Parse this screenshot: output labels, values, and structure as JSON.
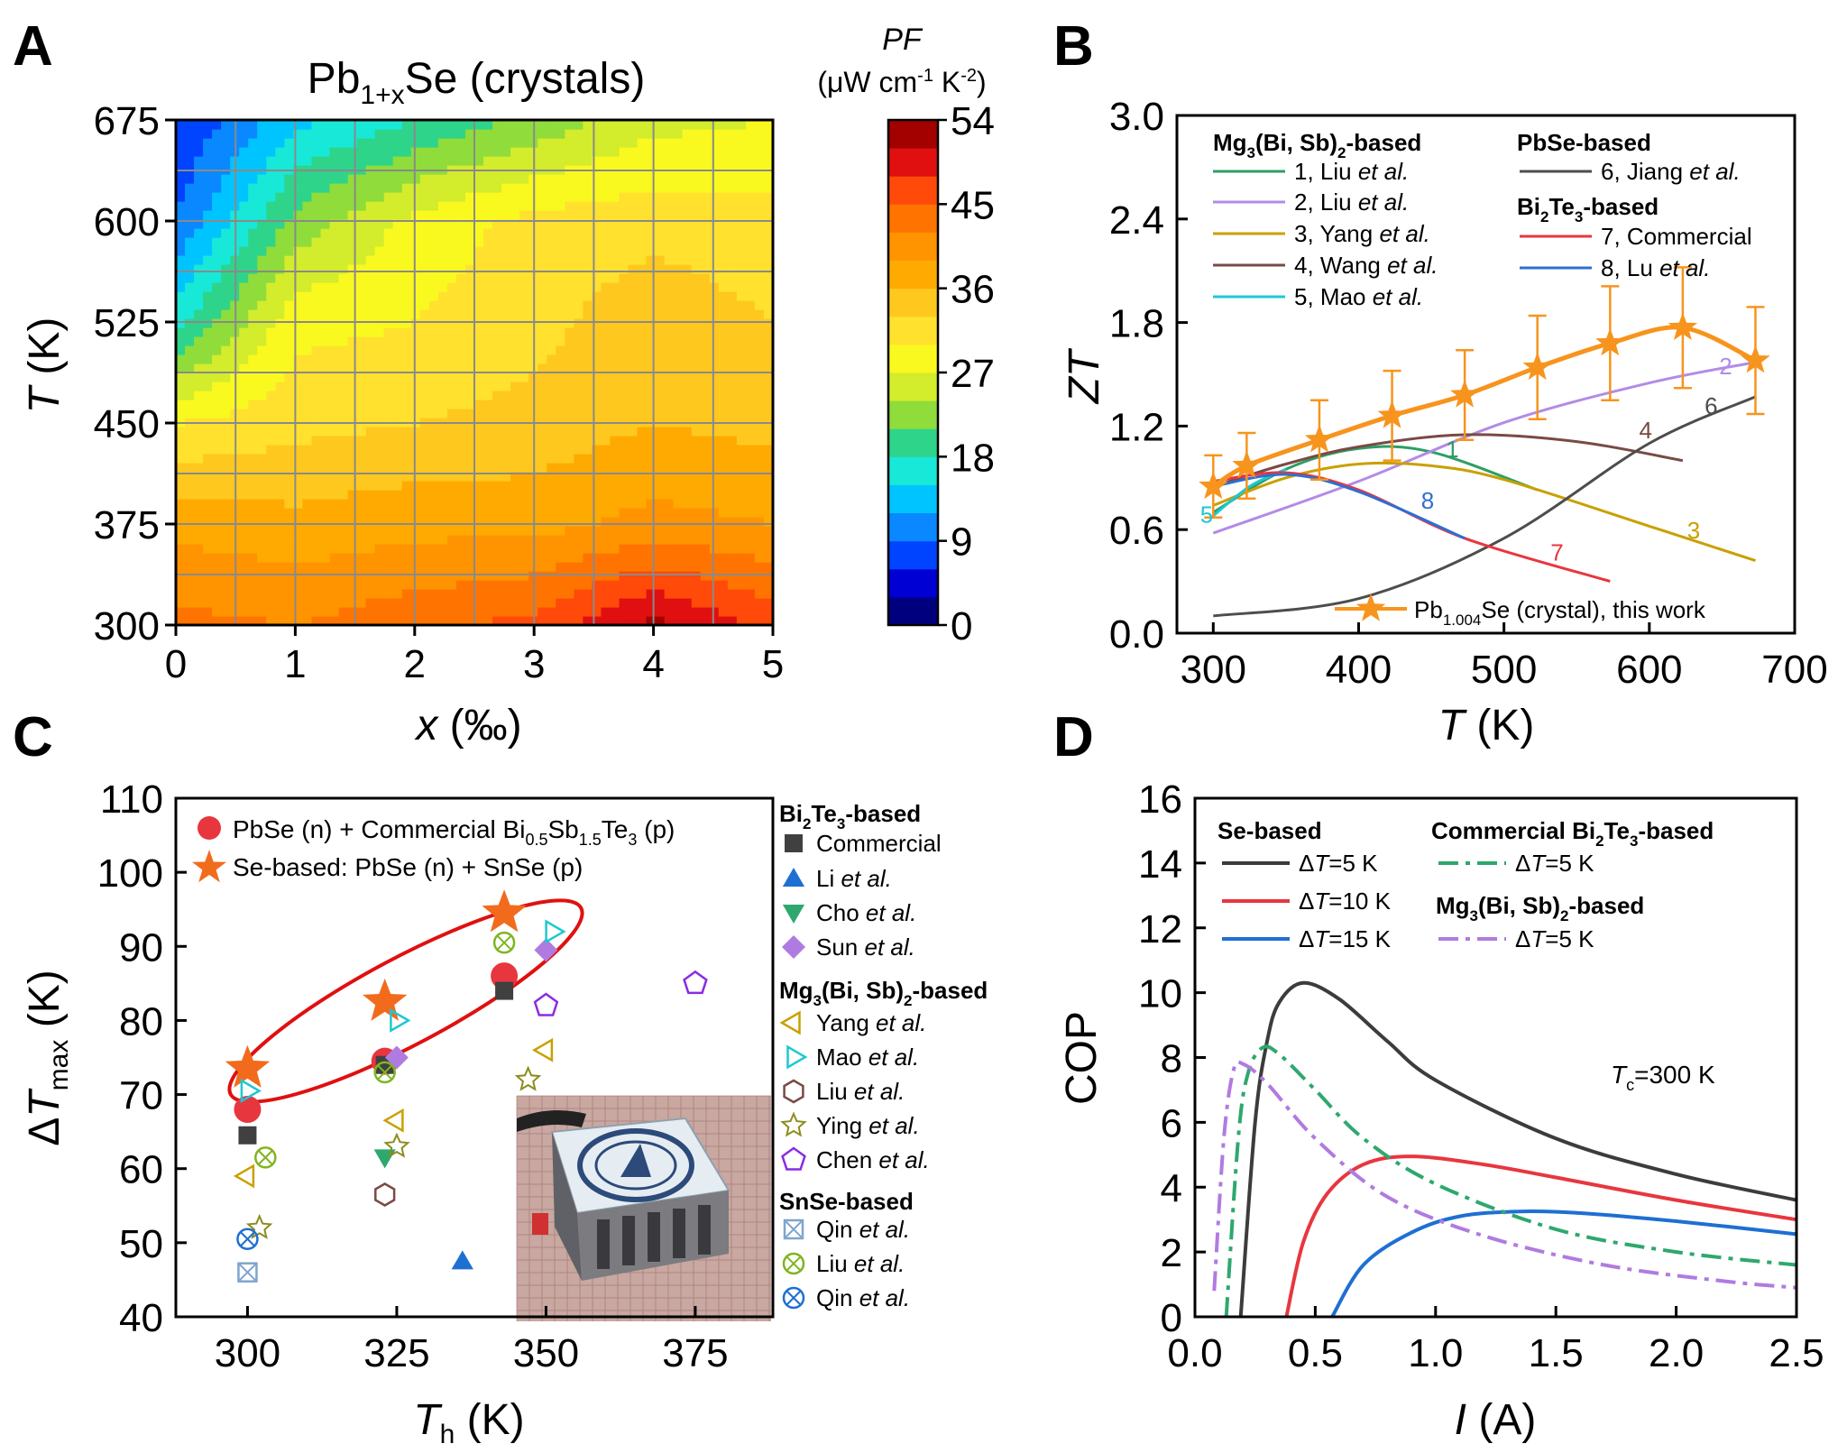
{
  "panels": {
    "A": {
      "label": "A",
      "title": "Pb1+xSe (crystals)",
      "xlabel": "x (‰)",
      "ylabel": "T (K)",
      "colorbar_title_1": "PF",
      "colorbar_title_2": "(μW cm-1 K-2)",
      "colorbar_ticks": [
        "0",
        "9",
        "18",
        "27",
        "36",
        "45",
        "54"
      ],
      "colors": [
        "#00007f",
        "#0000d5",
        "#0044ff",
        "#0a88ff",
        "#00c4ff",
        "#18e8d8",
        "#2ed48a",
        "#8fdc3a",
        "#d3ec2c",
        "#f9f91f",
        "#ffe12e",
        "#ffc81e",
        "#ffaa00",
        "#ff9400",
        "#ff7400",
        "#ff4a0a",
        "#e01010",
        "#a30000"
      ]
    },
    "B": {
      "label": "B",
      "legend_heads": [
        "Mg3(Bi, Sb)2-based",
        "PbSe-based",
        "Bi2Te3-based"
      ],
      "legend_items": [
        "1, Liu et al.",
        "2, Liu et al.",
        "3, Yang et al.",
        "4, Wang et al.",
        "5, Mao et al.",
        "6, Jiang et al.",
        "7, Commercial",
        "8, Lu et al."
      ],
      "main_legend": "Pb1.004Se (crystal), this work"
    },
    "C": {
      "label": "C",
      "legend_main": [
        "PbSe (n) + Commercial Bi0.5Sb1.5Te3 (p)",
        "Se-based: PbSe (n) + SnSe (p)"
      ],
      "groups": [
        "Bi2Te3-based",
        "Mg3(Bi, Sb)2-based",
        "SnSe-based"
      ],
      "items": [
        "Commercial",
        "Li et al.",
        "Cho et al.",
        "Sun et al.",
        "Yang et al.",
        "Mao  et al.",
        "Liu  et al.",
        "Ying  et al.",
        "Chen  et al.",
        "Qin et al.",
        "Liu et al.",
        "Qin et al."
      ]
    },
    "D": {
      "label": "D",
      "legend_heads": [
        "Se-based",
        "Commercial Bi2Te3-based",
        "Mg3(Bi, Sb)2-based"
      ],
      "legend_items": [
        "ΔT=5 K",
        "ΔT=10 K",
        "ΔT=15 K",
        "ΔT=5 K",
        "ΔT=5 K"
      ],
      "annotation": "Tc=300 K"
    }
  },
  "chart_data": [
    {
      "panel": "A",
      "type": "heatmap",
      "title": "Pb1+xSe (crystals)",
      "xlabel": "x (‰)",
      "ylabel": "T (K)",
      "xlim": [
        0,
        5
      ],
      "ylim": [
        300,
        675
      ],
      "x_ticks": [
        0,
        1,
        2,
        3,
        4,
        5
      ],
      "y_ticks": [
        300,
        375,
        450,
        525,
        600,
        675
      ],
      "colorbar": {
        "label": "PF (μW cm-1 K-2)",
        "range": [
          0,
          54
        ],
        "ticks": [
          0,
          9,
          18,
          27,
          36,
          45,
          54
        ]
      },
      "x": [
        0,
        1,
        2,
        3,
        4,
        5
      ],
      "y": [
        300,
        375,
        450,
        525,
        600,
        675
      ],
      "z": [
        [
          43,
          42,
          44,
          46,
          52,
          47
        ],
        [
          38,
          37,
          38,
          38,
          40,
          39
        ],
        [
          30,
          32,
          33,
          34,
          36,
          35
        ],
        [
          17,
          29,
          30,
          32,
          35,
          33
        ],
        [
          9,
          22,
          28,
          31,
          32,
          31
        ],
        [
          6,
          14,
          18,
          22,
          26,
          27
        ]
      ]
    },
    {
      "panel": "B",
      "type": "line",
      "xlabel": "T (K)",
      "ylabel": "ZT",
      "xlim": [
        275,
        700
      ],
      "ylim": [
        0,
        3
      ],
      "x_ticks": [
        300,
        400,
        500,
        600,
        700
      ],
      "y_ticks": [
        0.0,
        0.6,
        1.2,
        1.8,
        2.4,
        3.0
      ],
      "series": [
        {
          "name": "1, Liu et al.",
          "color": "#2e9e64",
          "x": [
            300,
            350,
            400,
            450,
            523
          ],
          "y": [
            0.7,
            0.95,
            1.07,
            1.05,
            0.83
          ]
        },
        {
          "name": "2, Liu et al.",
          "color": "#b28be6",
          "x": [
            300,
            400,
            500,
            600,
            673
          ],
          "y": [
            0.58,
            0.88,
            1.22,
            1.45,
            1.57
          ]
        },
        {
          "name": "3, Yang et al.",
          "color": "#c9a000",
          "x": [
            300,
            350,
            400,
            450,
            500,
            600,
            673
          ],
          "y": [
            0.74,
            0.9,
            0.98,
            0.97,
            0.89,
            0.62,
            0.42
          ]
        },
        {
          "name": "4, Wang et al.",
          "color": "#7a4a44",
          "x": [
            300,
            350,
            400,
            473,
            550,
            623
          ],
          "y": [
            0.85,
            0.98,
            1.08,
            1.15,
            1.11,
            1.0
          ]
        },
        {
          "name": "5, Mao et al.",
          "color": "#1ec8d2",
          "x": [
            300,
            325,
            350
          ],
          "y": [
            0.68,
            0.85,
            0.95
          ]
        },
        {
          "name": "6, Jiang et al.",
          "color": "#4d4d4d",
          "x": [
            300,
            400,
            500,
            600,
            673
          ],
          "y": [
            0.1,
            0.2,
            0.55,
            1.1,
            1.37
          ]
        },
        {
          "name": "7, Commercial",
          "color": "#e8363f",
          "x": [
            300,
            350,
            400,
            473,
            573
          ],
          "y": [
            0.88,
            0.93,
            0.83,
            0.55,
            0.3
          ]
        },
        {
          "name": "8, Lu et al.",
          "color": "#2e6fd0",
          "x": [
            300,
            350,
            400,
            473
          ],
          "y": [
            0.85,
            0.92,
            0.82,
            0.55
          ]
        },
        {
          "name": "Pb1.004Se (crystal), this work",
          "color": "#f7941d",
          "x": [
            300,
            323,
            373,
            423,
            473,
            523,
            573,
            623,
            673
          ],
          "y": [
            0.85,
            0.97,
            1.12,
            1.26,
            1.38,
            1.54,
            1.68,
            1.77,
            1.58
          ],
          "error": [
            0.18,
            0.19,
            0.23,
            0.26,
            0.26,
            0.3,
            0.33,
            0.35,
            0.31
          ]
        }
      ]
    },
    {
      "panel": "C",
      "type": "scatter",
      "xlabel": "Th (K)",
      "ylabel": "ΔTmax (K)",
      "xlim": [
        288,
        388
      ],
      "ylim": [
        40,
        110
      ],
      "x_ticks": [
        300,
        325,
        350,
        375
      ],
      "y_ticks": [
        40,
        50,
        60,
        70,
        80,
        90,
        100,
        110
      ],
      "series": [
        {
          "name": "PbSe (n) + Commercial Bi0.5Sb1.5Te3 (p)",
          "marker": "circle",
          "color": "#e8363f",
          "x": [
            300,
            323,
            343
          ],
          "y": [
            68,
            74.5,
            86
          ]
        },
        {
          "name": "Se-based: PbSe (n) + SnSe (p)",
          "marker": "star",
          "color": "#f26b1d",
          "x": [
            300,
            323,
            343
          ],
          "y": [
            73.5,
            82.5,
            94.5
          ]
        },
        {
          "name": "Commercial",
          "marker": "square",
          "color": "#404040",
          "x": [
            300,
            323,
            343
          ],
          "y": [
            64.5,
            74,
            84
          ]
        },
        {
          "name": "Li et al.",
          "marker": "triangle-up",
          "color": "#1e6fd2",
          "x": [
            336
          ],
          "y": [
            47.5
          ]
        },
        {
          "name": "Cho et al.",
          "marker": "triangle-down",
          "color": "#2ea86e",
          "x": [
            323
          ],
          "y": [
            61.5
          ]
        },
        {
          "name": "Sun et al.",
          "marker": "diamond",
          "color": "#b07be0",
          "x": [
            325,
            350
          ],
          "y": [
            75,
            89.5
          ]
        },
        {
          "name": "Yang et al.",
          "marker": "triangle-left",
          "color": "#c9a000",
          "x": [
            300,
            325,
            350
          ],
          "y": [
            59,
            66.5,
            76
          ]
        },
        {
          "name": "Mao  et al.",
          "marker": "triangle-right",
          "color": "#1ec8d2",
          "x": [
            300,
            325,
            351
          ],
          "y": [
            70.5,
            80,
            92
          ]
        },
        {
          "name": "Liu  et al.",
          "marker": "hexagon",
          "color": "#7a4a44",
          "x": [
            323
          ],
          "y": [
            56.5
          ]
        },
        {
          "name": "Ying  et al.",
          "marker": "star-open",
          "color": "#8c8c1e",
          "x": [
            302,
            325,
            347
          ],
          "y": [
            52,
            63,
            72
          ]
        },
        {
          "name": "Chen  et al.",
          "marker": "pentagon",
          "color": "#8a2be2",
          "x": [
            350,
            375
          ],
          "y": [
            82,
            85
          ]
        },
        {
          "name": "Qin et al.",
          "marker": "boxed-x",
          "color": "#7fa5cf",
          "x": [
            300
          ],
          "y": [
            46
          ]
        },
        {
          "name": "Liu et al.",
          "marker": "circle-x",
          "color": "#7fb520",
          "x": [
            303,
            323,
            343
          ],
          "y": [
            61.5,
            73,
            90.5
          ]
        },
        {
          "name": "Qin et al.",
          "marker": "circle-x",
          "color": "#1e6fd2",
          "x": [
            300
          ],
          "y": [
            50.5
          ]
        }
      ]
    },
    {
      "panel": "D",
      "type": "line",
      "xlabel": "I (A)",
      "ylabel": "COP",
      "xlim": [
        0,
        2.5
      ],
      "ylim": [
        0,
        16
      ],
      "x_ticks": [
        0.0,
        0.5,
        1.0,
        1.5,
        2.0,
        2.5
      ],
      "y_ticks": [
        0,
        2,
        4,
        6,
        8,
        10,
        12,
        14,
        16
      ],
      "annotation": "Tc=300 K",
      "series": [
        {
          "name": "Se-based ΔT=5 K",
          "color": "#3c3c3c",
          "dash": "solid",
          "x": [
            0.19,
            0.25,
            0.3,
            0.35,
            0.45,
            0.6,
            0.8,
            1.0,
            1.5,
            2.0,
            2.5
          ],
          "y": [
            0,
            6.0,
            8.5,
            9.7,
            10.3,
            9.8,
            8.5,
            7.3,
            5.5,
            4.4,
            3.6
          ]
        },
        {
          "name": "Se-based ΔT=10 K",
          "color": "#e8363f",
          "dash": "solid",
          "x": [
            0.38,
            0.45,
            0.55,
            0.7,
            0.9,
            1.2,
            1.5,
            2.0,
            2.5
          ],
          "y": [
            0,
            2.3,
            3.8,
            4.7,
            4.95,
            4.7,
            4.3,
            3.6,
            3.0
          ]
        },
        {
          "name": "Se-based ΔT=15 K",
          "color": "#1e6fd2",
          "dash": "solid",
          "x": [
            0.57,
            0.7,
            0.9,
            1.1,
            1.35,
            1.6,
            2.0,
            2.5
          ],
          "y": [
            0,
            1.6,
            2.6,
            3.1,
            3.25,
            3.2,
            2.95,
            2.55
          ]
        },
        {
          "name": "Commercial Bi2Te3-based ΔT=5 K",
          "color": "#2ea86e",
          "dash": "dashdot",
          "x": [
            0.13,
            0.18,
            0.22,
            0.28,
            0.35,
            0.5,
            0.7,
            1.0,
            1.5,
            2.0,
            2.5
          ],
          "y": [
            0,
            5.5,
            7.5,
            8.3,
            8.1,
            7.0,
            5.5,
            4.1,
            2.7,
            2.0,
            1.6
          ]
        },
        {
          "name": "Mg3(Bi, Sb)2-based ΔT=5 K",
          "color": "#b07be0",
          "dash": "dashdot",
          "x": [
            0.08,
            0.12,
            0.16,
            0.2,
            0.3,
            0.5,
            0.8,
            1.2,
            1.7,
            2.2,
            2.5
          ],
          "y": [
            0.8,
            5.5,
            7.6,
            7.8,
            7.2,
            5.5,
            3.7,
            2.5,
            1.6,
            1.1,
            0.9
          ]
        }
      ]
    }
  ]
}
